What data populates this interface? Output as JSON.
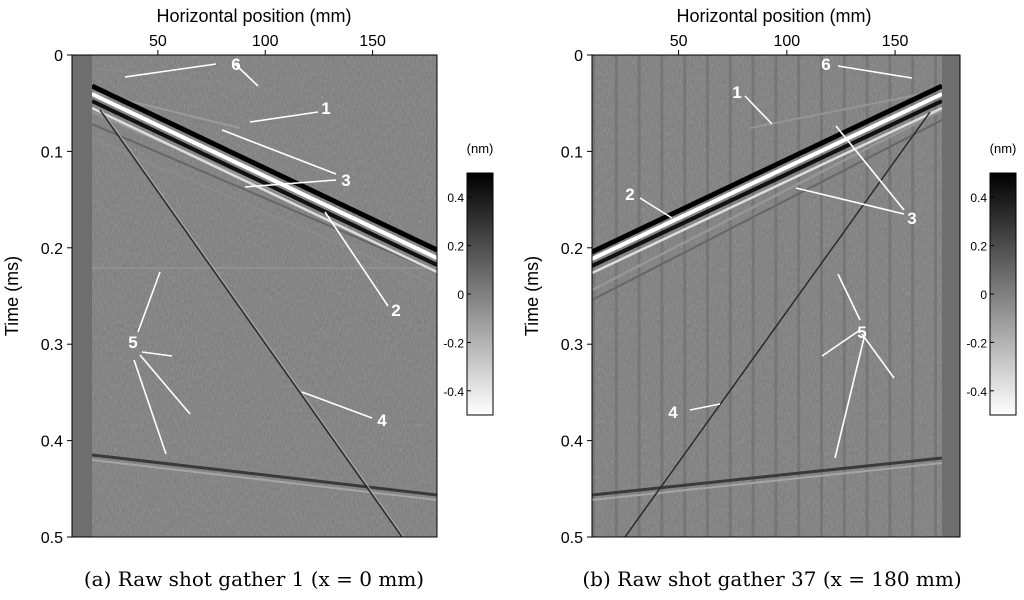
{
  "chart_data": [
    {
      "type": "heatmap",
      "caption": "(a) Raw shot gather 1 (x = 0 mm)",
      "xlabel": "Horizontal position (mm)",
      "ylabel": "Time (ms)",
      "x_ticks": [
        50,
        100,
        150
      ],
      "y_ticks": [
        0,
        0.1,
        0.2,
        0.3,
        0.4,
        0.5
      ],
      "y_tick_labels": [
        "0",
        "0.1",
        "0.2",
        "0.3",
        "0.4",
        "0.5"
      ],
      "xlim": [
        10,
        180
      ],
      "ylim": [
        0,
        0.5
      ],
      "colorbar": {
        "unit": "(nm)",
        "ticks": [
          0.4,
          0.2,
          0,
          -0.2,
          -0.4
        ],
        "tick_labels": [
          "0.4",
          "0.2",
          "0",
          "-0.2",
          "-0.4"
        ],
        "range": [
          -0.5,
          0.5
        ]
      },
      "annotations": [
        {
          "label": "6",
          "x": 102,
          "y": 0.014
        },
        {
          "label": "1",
          "x": 138,
          "y": 0.06
        },
        {
          "label": "3",
          "x": 142,
          "y": 0.13
        },
        {
          "label": "2",
          "x": 166,
          "y": 0.27
        },
        {
          "label": "5",
          "x": 24,
          "y": 0.3
        },
        {
          "label": "4",
          "x": 160,
          "y": 0.38
        }
      ]
    },
    {
      "type": "heatmap",
      "caption": "(b) Raw shot gather 37 (x = 180 mm)",
      "xlabel": "Horizontal position (mm)",
      "ylabel": "Time (ms)",
      "x_ticks": [
        50,
        100,
        150
      ],
      "y_ticks": [
        0,
        0.1,
        0.2,
        0.3,
        0.4,
        0.5
      ],
      "y_tick_labels": [
        "0",
        "0.1",
        "0.2",
        "0.3",
        "0.4",
        "0.5"
      ],
      "xlim": [
        10,
        180
      ],
      "ylim": [
        0,
        0.5
      ],
      "colorbar": {
        "unit": "(nm)",
        "ticks": [
          0.4,
          0.2,
          0,
          -0.2,
          -0.4
        ],
        "tick_labels": [
          "0.4",
          "0.2",
          "0",
          "-0.2",
          "-0.4"
        ],
        "range": [
          -0.5,
          0.5
        ]
      },
      "annotations": [
        {
          "label": "6",
          "x": 126,
          "y": 0.014
        },
        {
          "label": "1",
          "x": 65,
          "y": 0.04
        },
        {
          "label": "2",
          "x": 25,
          "y": 0.145
        },
        {
          "label": "3",
          "x": 153,
          "y": 0.17
        },
        {
          "label": "5",
          "x": 134,
          "y": 0.29
        },
        {
          "label": "4",
          "x": 43,
          "y": 0.375
        }
      ]
    }
  ]
}
